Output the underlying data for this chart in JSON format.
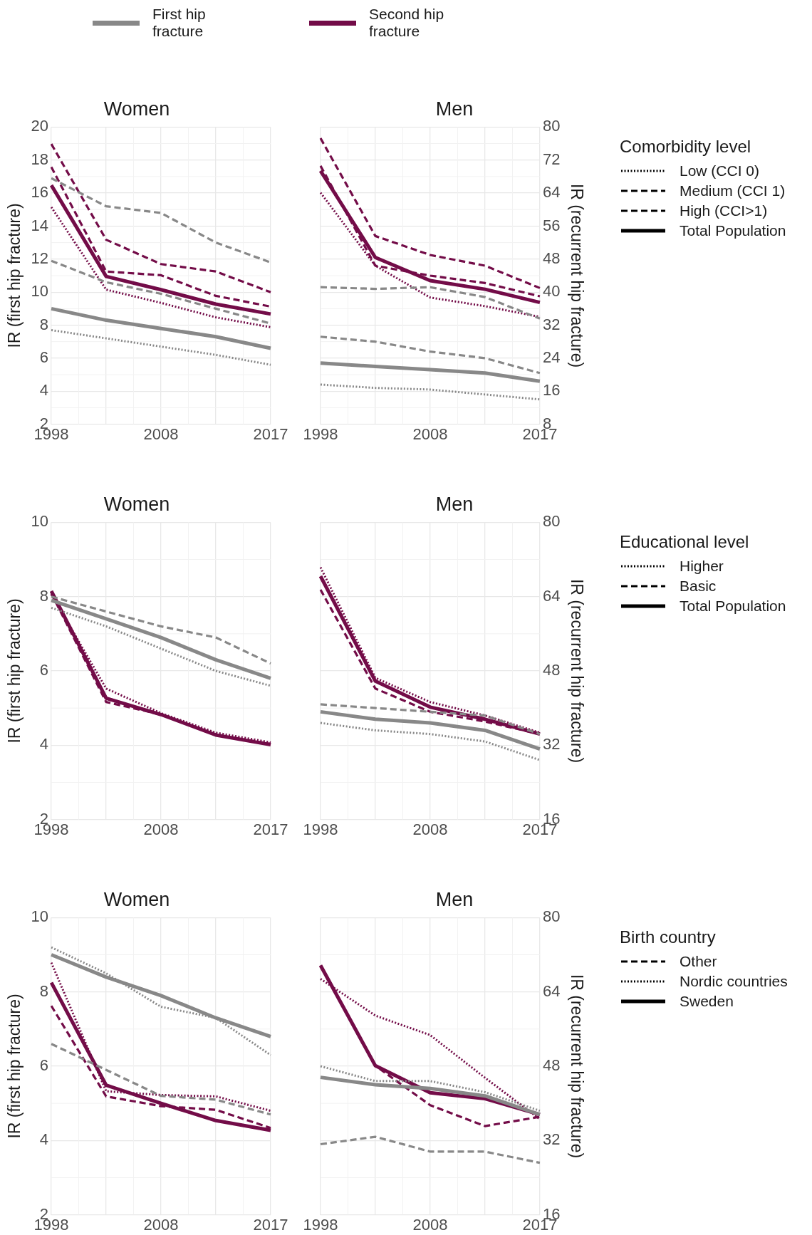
{
  "chart_data": [
    {
      "type": "line",
      "title": "Women",
      "ylabel": "IR (first hip fracture)",
      "categories": [
        "1998",
        null,
        "2008",
        null,
        "2017"
      ],
      "ylim": [
        2,
        20
      ],
      "yticks": [
        2,
        4,
        6,
        8,
        10,
        12,
        14,
        16,
        18,
        20
      ],
      "y2lim": [
        8,
        80
      ],
      "grid": true,
      "annotations": [
        "First hip fracture",
        "Second hip fracture"
      ],
      "series": [
        {
          "color": "#888888",
          "line_style": "dotted",
          "axis": "y",
          "values": [
            7.7,
            7.2,
            6.7,
            6.2,
            5.6
          ]
        },
        {
          "color": "#888888",
          "line_style": "dashed",
          "axis": "y",
          "values": [
            11.9,
            10.6,
            9.9,
            9.0,
            8.1
          ]
        },
        {
          "color": "#888888",
          "line_style": "dashed",
          "axis": "y",
          "values": [
            16.9,
            15.2,
            14.8,
            13.0,
            11.8
          ]
        },
        {
          "color": "#888888",
          "line_style": "solid",
          "axis": "y",
          "values": [
            9.0,
            8.3,
            7.8,
            7.3,
            6.6
          ]
        },
        {
          "color": "#730c48",
          "line_style": "dotted",
          "axis": "y2",
          "values": [
            60.6,
            40.6,
            37.4,
            33.9,
            31.5
          ]
        },
        {
          "color": "#730c48",
          "line_style": "dashed",
          "axis": "y2",
          "values": [
            70.3,
            45.0,
            44.1,
            39.1,
            36.5
          ]
        },
        {
          "color": "#730c48",
          "line_style": "dashed",
          "axis": "y2",
          "values": [
            75.9,
            52.7,
            46.8,
            45.0,
            40.0
          ]
        },
        {
          "color": "#730c48",
          "line_style": "solid",
          "axis": "y2",
          "values": [
            65.9,
            43.8,
            40.6,
            37.1,
            34.7
          ]
        }
      ]
    },
    {
      "type": "line",
      "title": "Men",
      "y2label": "IR (recurrent hip fracture)",
      "categories": [
        "1998",
        null,
        "2008",
        null,
        "2017"
      ],
      "ylim": [
        2,
        20
      ],
      "y2lim": [
        8,
        80
      ],
      "y2ticks": [
        8,
        16,
        24,
        32,
        40,
        48,
        56,
        64,
        72,
        80
      ],
      "grid": true,
      "legend_title": "Comorbidity level",
      "annotations": [
        "Low (CCI 0)",
        "Medium (CCI 1)",
        "High (CCI>1)",
        "Total Population"
      ],
      "series": [
        {
          "color": "#888888",
          "line_style": "dotted",
          "axis": "y",
          "values": [
            4.4,
            4.2,
            4.1,
            3.8,
            3.5
          ]
        },
        {
          "color": "#888888",
          "line_style": "dashed",
          "axis": "y",
          "values": [
            7.3,
            7.0,
            6.4,
            6.0,
            5.1
          ]
        },
        {
          "color": "#888888",
          "line_style": "dashed",
          "axis": "y",
          "values": [
            10.3,
            10.2,
            10.3,
            9.7,
            8.4
          ]
        },
        {
          "color": "#888888",
          "line_style": "solid",
          "axis": "y",
          "values": [
            5.7,
            5.5,
            5.3,
            5.1,
            4.6
          ]
        },
        {
          "color": "#730c48",
          "line_style": "dotted",
          "axis": "y2",
          "values": [
            64.1,
            46.4,
            38.7,
            36.6,
            34.0
          ]
        },
        {
          "color": "#730c48",
          "line_style": "dashed",
          "axis": "y2",
          "values": [
            70.6,
            46.4,
            44.0,
            42.2,
            39.0
          ]
        },
        {
          "color": "#730c48",
          "line_style": "dashed",
          "axis": "y2",
          "values": [
            77.3,
            53.6,
            49.0,
            46.4,
            41.0
          ]
        },
        {
          "color": "#730c48",
          "line_style": "solid",
          "axis": "y2",
          "values": [
            69.4,
            48.4,
            42.8,
            40.7,
            37.5
          ]
        }
      ]
    },
    {
      "type": "line",
      "title": "Women",
      "ylabel": "IR (first hip fracture)",
      "categories": [
        "1998",
        null,
        "2008",
        null,
        "2017"
      ],
      "ylim": [
        2,
        10
      ],
      "yticks": [
        2,
        4,
        6,
        8,
        10
      ],
      "y2lim": [
        16,
        80
      ],
      "grid": true,
      "series": [
        {
          "color": "#888888",
          "line_style": "dotted",
          "axis": "y",
          "values": [
            7.7,
            7.2,
            6.6,
            6.0,
            5.6
          ]
        },
        {
          "color": "#888888",
          "line_style": "dashed",
          "axis": "y",
          "values": [
            8.0,
            7.6,
            7.2,
            6.9,
            6.2
          ]
        },
        {
          "color": "#888888",
          "line_style": "solid",
          "axis": "y",
          "values": [
            7.9,
            7.4,
            6.9,
            6.3,
            5.8
          ]
        },
        {
          "color": "#730c48",
          "line_style": "dotted",
          "axis": "y2",
          "values": [
            64.5,
            44.2,
            38.9,
            34.7,
            32.6
          ]
        },
        {
          "color": "#730c48",
          "line_style": "dashed",
          "axis": "y2",
          "values": [
            64.7,
            41.3,
            38.6,
            34.2,
            32.3
          ]
        },
        {
          "color": "#730c48",
          "line_style": "solid",
          "axis": "y2",
          "values": [
            65.2,
            42.1,
            38.6,
            34.2,
            32.1
          ]
        }
      ]
    },
    {
      "type": "line",
      "title": "Men",
      "y2label": "IR (recurrent hip fracture)",
      "categories": [
        "1998",
        null,
        "2008",
        null,
        "2017"
      ],
      "ylim": [
        2,
        10
      ],
      "y2lim": [
        16,
        80
      ],
      "y2ticks": [
        16,
        32,
        48,
        64,
        80
      ],
      "grid": true,
      "legend_title": "Educational level",
      "annotations": [
        "Higher",
        "Basic",
        "Total Population"
      ],
      "series": [
        {
          "color": "#888888",
          "line_style": "dotted",
          "axis": "y",
          "values": [
            4.6,
            4.4,
            4.3,
            4.1,
            3.6
          ]
        },
        {
          "color": "#888888",
          "line_style": "dashed",
          "axis": "y",
          "values": [
            5.1,
            5.0,
            4.9,
            4.8,
            4.3
          ]
        },
        {
          "color": "#888888",
          "line_style": "solid",
          "axis": "y",
          "values": [
            4.9,
            4.7,
            4.6,
            4.4,
            3.9
          ]
        },
        {
          "color": "#730c48",
          "line_style": "dotted",
          "axis": "y2",
          "values": [
            70.3,
            46.5,
            41.3,
            38.4,
            34.7
          ]
        },
        {
          "color": "#730c48",
          "line_style": "dashed",
          "axis": "y2",
          "values": [
            65.5,
            44.2,
            39.2,
            37.1,
            34.4
          ]
        },
        {
          "color": "#730c48",
          "line_style": "solid",
          "axis": "y2",
          "values": [
            68.4,
            45.8,
            40.2,
            37.6,
            34.4
          ]
        }
      ]
    },
    {
      "type": "line",
      "title": "Women",
      "ylabel": "IR (first hip fracture)",
      "categories": [
        "1998",
        null,
        "2008",
        null,
        "2017"
      ],
      "ylim": [
        2,
        10
      ],
      "yticks": [
        2,
        4,
        6,
        8,
        10
      ],
      "y2lim": [
        16,
        80
      ],
      "grid": true,
      "series": [
        {
          "color": "#888888",
          "line_style": "dashed",
          "axis": "y",
          "values": [
            6.6,
            5.9,
            5.2,
            5.1,
            4.7
          ]
        },
        {
          "color": "#888888",
          "line_style": "dotted",
          "axis": "y",
          "values": [
            9.2,
            8.5,
            7.6,
            7.3,
            6.3
          ]
        },
        {
          "color": "#888888",
          "line_style": "solid",
          "axis": "y",
          "values": [
            9.0,
            8.4,
            7.9,
            7.3,
            6.8
          ]
        },
        {
          "color": "#730c48",
          "line_style": "dashed",
          "axis": "y2",
          "values": [
            61.0,
            41.5,
            39.4,
            38.6,
            34.7
          ]
        },
        {
          "color": "#730c48",
          "line_style": "dotted",
          "axis": "y2",
          "values": [
            70.3,
            42.6,
            41.8,
            41.5,
            38.4
          ]
        },
        {
          "color": "#730c48",
          "line_style": "solid",
          "axis": "y2",
          "values": [
            66.0,
            43.9,
            40.0,
            36.3,
            34.2
          ]
        }
      ]
    },
    {
      "type": "line",
      "title": "Men",
      "y2label": "IR (recurrent hip fracture)",
      "categories": [
        "1998",
        null,
        "2008",
        null,
        "2017"
      ],
      "ylim": [
        2,
        10
      ],
      "y2lim": [
        16,
        80
      ],
      "y2ticks": [
        16,
        32,
        48,
        64,
        80
      ],
      "grid": true,
      "legend_title": "Birth country",
      "annotations": [
        "Other",
        "Nordic countries",
        "Sweden"
      ],
      "series": [
        {
          "color": "#888888",
          "line_style": "dashed",
          "axis": "y",
          "values": [
            3.9,
            4.1,
            3.7,
            3.7,
            3.4
          ]
        },
        {
          "color": "#888888",
          "line_style": "dotted",
          "axis": "y",
          "values": [
            6.0,
            5.6,
            5.6,
            5.3,
            4.8
          ]
        },
        {
          "color": "#888888",
          "line_style": "solid",
          "axis": "y",
          "values": [
            5.7,
            5.5,
            5.4,
            5.2,
            4.7
          ]
        },
        {
          "color": "#730c48",
          "line_style": "dashed",
          "axis": "y2",
          "values": [
            69.7,
            48.1,
            39.6,
            35.1,
            37.1
          ]
        },
        {
          "color": "#730c48",
          "line_style": "dotted",
          "axis": "y2",
          "values": [
            66.8,
            58.9,
            54.7,
            45.5,
            36.6
          ]
        },
        {
          "color": "#730c48",
          "line_style": "solid",
          "axis": "y2",
          "values": [
            69.7,
            48.1,
            42.3,
            41.0,
            37.6
          ]
        }
      ]
    }
  ]
}
